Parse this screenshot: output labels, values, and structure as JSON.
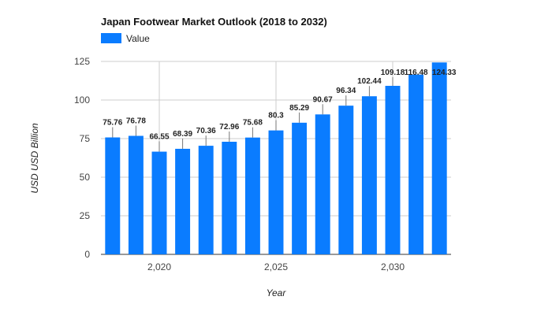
{
  "chart_data": {
    "type": "bar",
    "title": "Japan Footwear Market Outlook (2018 to 2032)",
    "xlabel": "Year",
    "ylabel": "USD USD Billion",
    "legend": {
      "position": "top-left",
      "entries": [
        "Value"
      ]
    },
    "series": [
      {
        "name": "Value",
        "color": "#0a7cff",
        "x": [
          2018,
          2019,
          2020,
          2021,
          2022,
          2023,
          2024,
          2025,
          2026,
          2027,
          2028,
          2029,
          2030,
          2031,
          2032
        ],
        "values": [
          75.76,
          76.78,
          66.55,
          68.39,
          70.36,
          72.96,
          75.68,
          80.3,
          85.29,
          90.67,
          96.34,
          102.44,
          109.18,
          116.48,
          124.33
        ],
        "labels": [
          "75.76",
          "76.78",
          "66.55",
          "68.39",
          "70.36",
          "72.96",
          "75.68",
          "80.3",
          "85.29",
          "90.67",
          "96.34",
          "102.44",
          "109.18",
          "116.48",
          "124.33"
        ]
      }
    ],
    "xlim": [
      2017.5,
      2032.5
    ],
    "ylim": [
      0,
      125
    ],
    "x_ticks": [
      2020,
      2025,
      2030
    ],
    "x_tick_labels": [
      "2,020",
      "2,025",
      "2,030"
    ],
    "y_ticks": [
      0,
      25,
      50,
      75,
      100,
      125
    ],
    "y_tick_labels": [
      "0",
      "25",
      "50",
      "75",
      "100",
      "125"
    ],
    "grid": true
  }
}
